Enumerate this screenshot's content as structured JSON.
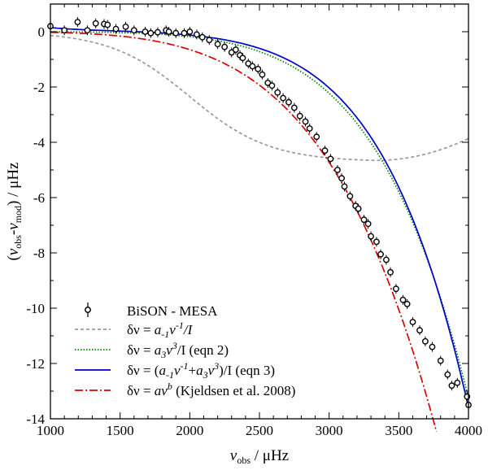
{
  "chart_data": {
    "type": "line",
    "xlabel": {
      "symbol": "ν",
      "subscript": "obs",
      "unit": " / μHz"
    },
    "ylabel": {
      "open": "(",
      "sym1": "ν",
      "sub1": "obs",
      "dash": "-",
      "sym2": "ν",
      "sub2": "mod",
      "close": ") / μHz"
    },
    "xlim": [
      1000,
      4000
    ],
    "ylim": [
      -14,
      1
    ],
    "x_ticks": [
      1000,
      1500,
      2000,
      2500,
      3000,
      3500,
      4000
    ],
    "y_ticks": [
      0,
      -2,
      -4,
      -6,
      -8,
      -10,
      -12,
      -14
    ],
    "x_tick_labels": [
      "1000",
      "1500",
      "2000",
      "2500",
      "3000",
      "3500",
      "4000"
    ],
    "y_tick_labels": [
      "0",
      "-2",
      "-4",
      "-6",
      "-8",
      "-10",
      "-12",
      "-14"
    ],
    "series": [
      {
        "name": "BiSON - MESA",
        "style": "points",
        "color": "#000000",
        "points": [
          [
            1000,
            0.2
          ],
          [
            1100,
            0.05
          ],
          [
            1195,
            0.35
          ],
          [
            1265,
            0.05
          ],
          [
            1325,
            0.3
          ],
          [
            1385,
            0.28
          ],
          [
            1410,
            0.25
          ],
          [
            1470,
            0.1
          ],
          [
            1540,
            0.18
          ],
          [
            1600,
            0.05
          ],
          [
            1680,
            0.0
          ],
          [
            1720,
            -0.05
          ],
          [
            1770,
            -0.02
          ],
          [
            1830,
            0.05
          ],
          [
            1850,
            0.0
          ],
          [
            1900,
            -0.05
          ],
          [
            1960,
            -0.05
          ],
          [
            2000,
            0.0
          ],
          [
            2050,
            -0.1
          ],
          [
            2090,
            -0.2
          ],
          [
            2140,
            -0.3
          ],
          [
            2200,
            -0.45
          ],
          [
            2250,
            -0.55
          ],
          [
            2300,
            -0.75
          ],
          [
            2330,
            -0.65
          ],
          [
            2360,
            -0.85
          ],
          [
            2380,
            -0.95
          ],
          [
            2420,
            -1.15
          ],
          [
            2450,
            -1.25
          ],
          [
            2490,
            -1.35
          ],
          [
            2520,
            -1.55
          ],
          [
            2560,
            -1.85
          ],
          [
            2590,
            -1.95
          ],
          [
            2630,
            -2.2
          ],
          [
            2670,
            -2.4
          ],
          [
            2710,
            -2.55
          ],
          [
            2750,
            -2.75
          ],
          [
            2790,
            -3.05
          ],
          [
            2830,
            -3.25
          ],
          [
            2860,
            -3.5
          ],
          [
            2910,
            -3.8
          ],
          [
            2970,
            -4.3
          ],
          [
            3010,
            -4.6
          ],
          [
            3060,
            -5.0
          ],
          [
            3090,
            -5.3
          ],
          [
            3110,
            -5.6
          ],
          [
            3150,
            -5.95
          ],
          [
            3190,
            -6.3
          ],
          [
            3210,
            -6.4
          ],
          [
            3250,
            -6.8
          ],
          [
            3280,
            -6.95
          ],
          [
            3300,
            -7.4
          ],
          [
            3340,
            -7.6
          ],
          [
            3370,
            -8.05
          ],
          [
            3410,
            -8.25
          ],
          [
            3440,
            -8.7
          ],
          [
            3480,
            -9.3
          ],
          [
            3530,
            -9.7
          ],
          [
            3560,
            -9.85
          ],
          [
            3600,
            -10.5
          ],
          [
            3650,
            -10.8
          ],
          [
            3690,
            -11.2
          ],
          [
            3740,
            -11.4
          ],
          [
            3800,
            -11.9
          ],
          [
            3850,
            -12.4
          ],
          [
            3880,
            -12.8
          ],
          [
            3920,
            -12.7
          ],
          [
            3990,
            -13.2
          ],
          [
            4000,
            -13.5
          ]
        ]
      },
      {
        "name": "a_{-1} term",
        "style": "dashed",
        "color": "#999999",
        "key": "inv"
      },
      {
        "name": "a_3 term",
        "style": "dotted",
        "color": "#008000",
        "key": "cubic"
      },
      {
        "name": "combined",
        "style": "solid",
        "color": "#0000cc",
        "key": "combined"
      },
      {
        "name": "power law",
        "style": "dashdot",
        "color": "#dd0000",
        "key": "kjeldsen"
      }
    ],
    "legend": {
      "position": "bottom-left",
      "entries": [
        {
          "text": "BiSON - MESA"
        },
        {
          "pre": "δν = ",
          "t1": "a",
          "s1": "-1",
          "t2": "ν",
          "s2": "-1",
          "post": "/I"
        },
        {
          "pre": "δν = ",
          "t1": "a",
          "s1": "3",
          "t2": "ν",
          "s2": "3",
          "post": "/I (eqn 2)"
        },
        {
          "pre": "δν = (",
          "t1": "a",
          "s1": "-1",
          "t2": "ν",
          "s2": "-1",
          "mid": "+",
          "t3": "a",
          "s3": "3",
          "t4": "ν",
          "s4": "3",
          "post": ")/I  (eqn 3)"
        },
        {
          "pre": "δν = ",
          "t1": "a",
          "t2": "ν",
          "s2": "b",
          "post": " (Kjeldsen et al. 2008)"
        }
      ]
    }
  }
}
